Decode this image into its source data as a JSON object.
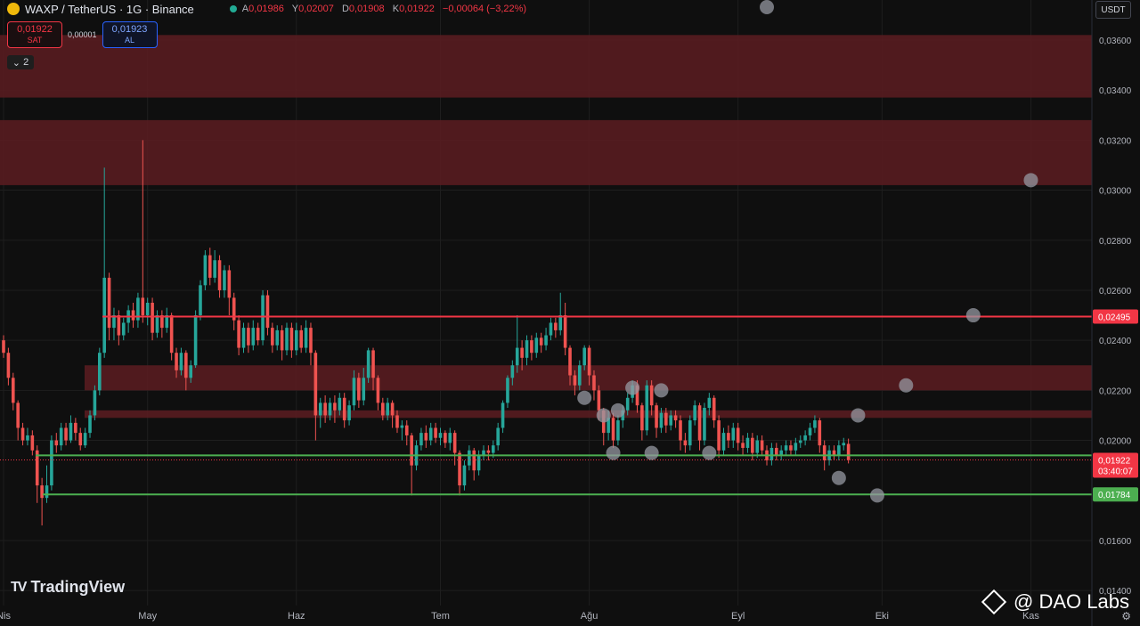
{
  "header": {
    "symbol": "WAXP / TetherUS · 1G · Binance",
    "ohlc": [
      {
        "label": "A",
        "value": "0,01986"
      },
      {
        "label": "Y",
        "value": "0,02007"
      },
      {
        "label": "D",
        "value": "0,01908"
      },
      {
        "label": "K",
        "value": "0,01922"
      },
      {
        "label": "",
        "value": "−0,00064 (−3,22%)"
      }
    ]
  },
  "trade": {
    "sell_price": "0,01922",
    "sell_label": "SAT",
    "spread": "0,00001",
    "buy_price": "0,01923",
    "buy_label": "AL"
  },
  "indicators_count": "2",
  "currency": "USDT",
  "watermark": "TradingView",
  "credit": "@ DAO Labs",
  "colors": {
    "up": "#26a69a",
    "down": "#ef5350",
    "zone": "#5c1c21",
    "resistance": "#f23645",
    "support": "#4caf50",
    "bg": "#0f0f0f"
  },
  "chart_data": {
    "type": "candlestick",
    "y_axis": {
      "range": [
        0.0134,
        0.0376
      ],
      "ticks": [
        "0,01400",
        "0,01600",
        "0,02000",
        "0,02200",
        "0,02400",
        "0,02600",
        "0,02800",
        "0,03000",
        "0,03200",
        "0,03400",
        "0,03600"
      ]
    },
    "x_axis": {
      "ticks": [
        "Nis",
        "May",
        "Haz",
        "Tem",
        "Ağu",
        "Eyl",
        "Eki",
        "Kas"
      ]
    },
    "price_labels": [
      {
        "value": 0.02495,
        "text": "0,02495",
        "kind": "resistance"
      },
      {
        "value": 0.01922,
        "text": "0,01922",
        "sub": "03:40:07",
        "kind": "last"
      },
      {
        "value": 0.01784,
        "text": "0,01784",
        "kind": "support"
      }
    ],
    "zones": [
      {
        "from": 0.0337,
        "to": 0.0362
      },
      {
        "from": 0.0302,
        "to": 0.0328
      },
      {
        "from": 0.022,
        "to": 0.023
      },
      {
        "from": 0.0209,
        "to": 0.0212
      }
    ],
    "lines": [
      {
        "value": 0.02495,
        "kind": "resistance"
      },
      {
        "value": 0.0194,
        "kind": "support"
      },
      {
        "value": 0.01784,
        "kind": "support"
      }
    ],
    "projection_points": [
      {
        "date": "2024-07-31",
        "price": 0.0217
      },
      {
        "date": "2024-08-04",
        "price": 0.021
      },
      {
        "date": "2024-08-06",
        "price": 0.0195
      },
      {
        "date": "2024-08-07",
        "price": 0.0212
      },
      {
        "date": "2024-08-10",
        "price": 0.0221
      },
      {
        "date": "2024-08-14",
        "price": 0.0195
      },
      {
        "date": "2024-08-16",
        "price": 0.022
      },
      {
        "date": "2024-08-26",
        "price": 0.0195
      },
      {
        "date": "2024-09-22",
        "price": 0.0185
      },
      {
        "date": "2024-09-26",
        "price": 0.021
      },
      {
        "date": "2024-09-30",
        "price": 0.0178
      },
      {
        "date": "2024-10-06",
        "price": 0.0222
      },
      {
        "date": "2024-10-20",
        "price": 0.025
      },
      {
        "date": "2024-09-07",
        "price": 0.0376
      },
      {
        "date": "2024-11-01",
        "price": 0.0304
      }
    ],
    "candles": [
      [
        0.024,
        0.0235,
        0.0233,
        0.0242
      ],
      [
        0.0235,
        0.0225,
        0.0222,
        0.0237
      ],
      [
        0.0225,
        0.0215,
        0.0212,
        0.0227
      ],
      [
        0.0215,
        0.0205,
        0.02,
        0.0216
      ],
      [
        0.0205,
        0.02,
        0.0198,
        0.0207
      ],
      [
        0.02,
        0.0202,
        0.0198,
        0.0205
      ],
      [
        0.0202,
        0.0196,
        0.0194,
        0.0204
      ],
      [
        0.0196,
        0.0182,
        0.0175,
        0.0198
      ],
      [
        0.0182,
        0.0177,
        0.0166,
        0.0185
      ],
      [
        0.0177,
        0.0182,
        0.0175,
        0.019
      ],
      [
        0.0182,
        0.02,
        0.018,
        0.0202
      ],
      [
        0.02,
        0.0198,
        0.0195,
        0.0203
      ],
      [
        0.0198,
        0.0205,
        0.0196,
        0.0207
      ],
      [
        0.0205,
        0.02,
        0.0198,
        0.0207
      ],
      [
        0.02,
        0.0207,
        0.0199,
        0.021
      ],
      [
        0.0207,
        0.0203,
        0.02,
        0.0209
      ],
      [
        0.0203,
        0.0198,
        0.0196,
        0.0205
      ],
      [
        0.0198,
        0.0203,
        0.0197,
        0.0205
      ],
      [
        0.0203,
        0.021,
        0.0201,
        0.0212
      ],
      [
        0.021,
        0.022,
        0.0208,
        0.0222
      ],
      [
        0.022,
        0.0235,
        0.0218,
        0.0237
      ],
      [
        0.0235,
        0.0265,
        0.0233,
        0.0309
      ],
      [
        0.0265,
        0.0245,
        0.024,
        0.0267
      ],
      [
        0.0245,
        0.025,
        0.024,
        0.0253
      ],
      [
        0.025,
        0.0242,
        0.0238,
        0.0252
      ],
      [
        0.0242,
        0.0247,
        0.024,
        0.0249
      ],
      [
        0.0247,
        0.0252,
        0.0243,
        0.0254
      ],
      [
        0.0252,
        0.0248,
        0.0245,
        0.0255
      ],
      [
        0.0248,
        0.0257,
        0.0245,
        0.0259
      ],
      [
        0.0257,
        0.025,
        0.0247,
        0.032
      ],
      [
        0.025,
        0.0255,
        0.0246,
        0.0257
      ],
      [
        0.0255,
        0.0243,
        0.024,
        0.0257
      ],
      [
        0.0243,
        0.025,
        0.0241,
        0.0252
      ],
      [
        0.025,
        0.0245,
        0.0241,
        0.0252
      ],
      [
        0.0245,
        0.025,
        0.0243,
        0.0253
      ],
      [
        0.025,
        0.0235,
        0.0232,
        0.0251
      ],
      [
        0.0235,
        0.0228,
        0.0225,
        0.0237
      ],
      [
        0.0228,
        0.0235,
        0.0226,
        0.0237
      ],
      [
        0.0235,
        0.0225,
        0.022,
        0.0236
      ],
      [
        0.0225,
        0.023,
        0.0223,
        0.0232
      ],
      [
        0.023,
        0.025,
        0.0229,
        0.0252
      ],
      [
        0.025,
        0.0262,
        0.0248,
        0.0264
      ],
      [
        0.0262,
        0.0274,
        0.026,
        0.0276
      ],
      [
        0.0274,
        0.0265,
        0.0262,
        0.0277
      ],
      [
        0.0265,
        0.0272,
        0.0263,
        0.0276
      ],
      [
        0.0272,
        0.026,
        0.0257,
        0.0274
      ],
      [
        0.026,
        0.0268,
        0.0257,
        0.027
      ],
      [
        0.0268,
        0.0257,
        0.025,
        0.027
      ],
      [
        0.0257,
        0.0248,
        0.0244,
        0.0259
      ],
      [
        0.0248,
        0.0237,
        0.0234,
        0.025
      ],
      [
        0.0237,
        0.0245,
        0.0235,
        0.0247
      ],
      [
        0.0245,
        0.0238,
        0.0235,
        0.0247
      ],
      [
        0.0238,
        0.0245,
        0.0236,
        0.0248
      ],
      [
        0.0245,
        0.024,
        0.0238,
        0.0247
      ],
      [
        0.024,
        0.0258,
        0.0238,
        0.026
      ],
      [
        0.0258,
        0.0245,
        0.0242,
        0.026
      ],
      [
        0.0245,
        0.0238,
        0.0235,
        0.0247
      ],
      [
        0.0238,
        0.0244,
        0.0236,
        0.0246
      ],
      [
        0.0244,
        0.0236,
        0.0232,
        0.0246
      ],
      [
        0.0236,
        0.0245,
        0.0234,
        0.0247
      ],
      [
        0.0245,
        0.0236,
        0.0233,
        0.0247
      ],
      [
        0.0236,
        0.0244,
        0.0234,
        0.0247
      ],
      [
        0.0244,
        0.0237,
        0.0235,
        0.0246
      ],
      [
        0.0237,
        0.0245,
        0.0235,
        0.0248
      ],
      [
        0.0245,
        0.0235,
        0.023,
        0.0247
      ],
      [
        0.0235,
        0.021,
        0.02,
        0.0236
      ],
      [
        0.021,
        0.0215,
        0.0205,
        0.0217
      ],
      [
        0.0215,
        0.021,
        0.0207,
        0.0218
      ],
      [
        0.021,
        0.0215,
        0.0208,
        0.0217
      ],
      [
        0.0215,
        0.0212,
        0.0207,
        0.0218
      ],
      [
        0.0212,
        0.0217,
        0.021,
        0.0219
      ],
      [
        0.0217,
        0.0208,
        0.0205,
        0.0219
      ],
      [
        0.0208,
        0.0214,
        0.0206,
        0.0216
      ],
      [
        0.0214,
        0.0225,
        0.0212,
        0.0228
      ],
      [
        0.0225,
        0.0216,
        0.0213,
        0.0227
      ],
      [
        0.0216,
        0.0225,
        0.0214,
        0.0229
      ],
      [
        0.0225,
        0.0236,
        0.0223,
        0.0237
      ],
      [
        0.0236,
        0.0225,
        0.022,
        0.0237
      ],
      [
        0.0225,
        0.0215,
        0.0212,
        0.0226
      ],
      [
        0.0215,
        0.021,
        0.0208,
        0.0217
      ],
      [
        0.021,
        0.0215,
        0.0208,
        0.0217
      ],
      [
        0.0215,
        0.021,
        0.0205,
        0.0216
      ],
      [
        0.021,
        0.0205,
        0.0203,
        0.0212
      ],
      [
        0.0205,
        0.0206,
        0.02,
        0.0208
      ],
      [
        0.0206,
        0.0202,
        0.0198,
        0.0208
      ],
      [
        0.0202,
        0.019,
        0.0178,
        0.0203
      ],
      [
        0.019,
        0.0198,
        0.0188,
        0.02
      ],
      [
        0.0198,
        0.0203,
        0.0196,
        0.0205
      ],
      [
        0.0203,
        0.02,
        0.0197,
        0.0206
      ],
      [
        0.02,
        0.0205,
        0.0198,
        0.0207
      ],
      [
        0.0205,
        0.0201,
        0.0199,
        0.0207
      ],
      [
        0.0201,
        0.0203,
        0.0198,
        0.0205
      ],
      [
        0.0203,
        0.0199,
        0.0197,
        0.0204
      ],
      [
        0.0199,
        0.0203,
        0.0196,
        0.0205
      ],
      [
        0.0203,
        0.0195,
        0.019,
        0.0204
      ],
      [
        0.0195,
        0.0182,
        0.0178,
        0.0196
      ],
      [
        0.0182,
        0.019,
        0.018,
        0.0192
      ],
      [
        0.019,
        0.0196,
        0.0188,
        0.0198
      ],
      [
        0.0196,
        0.0188,
        0.0184,
        0.0197
      ],
      [
        0.0188,
        0.0194,
        0.0186,
        0.0196
      ],
      [
        0.0194,
        0.0196,
        0.0192,
        0.0198
      ],
      [
        0.0196,
        0.0195,
        0.0192,
        0.0198
      ],
      [
        0.0195,
        0.0198,
        0.0193,
        0.02
      ],
      [
        0.0198,
        0.0205,
        0.0196,
        0.0207
      ],
      [
        0.0205,
        0.0215,
        0.0203,
        0.0216
      ],
      [
        0.0215,
        0.0225,
        0.0213,
        0.0226
      ],
      [
        0.0225,
        0.023,
        0.0222,
        0.0232
      ],
      [
        0.023,
        0.0237,
        0.0227,
        0.025
      ],
      [
        0.0237,
        0.0233,
        0.0228,
        0.024
      ],
      [
        0.0233,
        0.024,
        0.023,
        0.0242
      ],
      [
        0.024,
        0.0235,
        0.0232,
        0.0242
      ],
      [
        0.0235,
        0.0241,
        0.0233,
        0.0243
      ],
      [
        0.0241,
        0.0238,
        0.0235,
        0.0243
      ],
      [
        0.0238,
        0.0242,
        0.0236,
        0.0245
      ],
      [
        0.0242,
        0.0247,
        0.024,
        0.0249
      ],
      [
        0.0247,
        0.0244,
        0.0241,
        0.0249
      ],
      [
        0.0244,
        0.025,
        0.0242,
        0.0259
      ],
      [
        0.025,
        0.0237,
        0.0234,
        0.0255
      ],
      [
        0.0237,
        0.0226,
        0.0222,
        0.0238
      ],
      [
        0.0226,
        0.0222,
        0.0218,
        0.0228
      ],
      [
        0.0222,
        0.023,
        0.022,
        0.0232
      ],
      [
        0.023,
        0.0237,
        0.0228,
        0.0238
      ],
      [
        0.0237,
        0.0226,
        0.0222,
        0.0238
      ],
      [
        0.0226,
        0.022,
        0.0216,
        0.0228
      ],
      [
        0.022,
        0.0212,
        0.0208,
        0.0222
      ],
      [
        0.0212,
        0.0203,
        0.0198,
        0.0213
      ],
      [
        0.0203,
        0.0209,
        0.02,
        0.0212
      ],
      [
        0.0209,
        0.02,
        0.0197,
        0.0211
      ],
      [
        0.02,
        0.0208,
        0.0198,
        0.021
      ],
      [
        0.0208,
        0.0212,
        0.0205,
        0.0214
      ],
      [
        0.0212,
        0.0217,
        0.021,
        0.0219
      ],
      [
        0.0217,
        0.0222,
        0.0215,
        0.0224
      ],
      [
        0.0222,
        0.0214,
        0.0211,
        0.0224
      ],
      [
        0.0214,
        0.0204,
        0.02,
        0.0215
      ],
      [
        0.0204,
        0.0222,
        0.0202,
        0.0224
      ],
      [
        0.0222,
        0.0214,
        0.021,
        0.0224
      ],
      [
        0.0214,
        0.0205,
        0.0201,
        0.0215
      ],
      [
        0.0205,
        0.0211,
        0.0203,
        0.0213
      ],
      [
        0.0211,
        0.0206,
        0.0203,
        0.0213
      ],
      [
        0.0206,
        0.021,
        0.0204,
        0.0212
      ],
      [
        0.021,
        0.0208,
        0.0205,
        0.0212
      ],
      [
        0.0208,
        0.02,
        0.0196,
        0.021
      ],
      [
        0.02,
        0.0198,
        0.0195,
        0.0203
      ],
      [
        0.0198,
        0.0208,
        0.0196,
        0.021
      ],
      [
        0.0208,
        0.0214,
        0.0206,
        0.0216
      ],
      [
        0.0214,
        0.02,
        0.0196,
        0.0215
      ],
      [
        0.02,
        0.0213,
        0.0198,
        0.0215
      ],
      [
        0.0213,
        0.0217,
        0.021,
        0.0219
      ],
      [
        0.0217,
        0.0208,
        0.0205,
        0.0218
      ],
      [
        0.0208,
        0.0196,
        0.0193,
        0.021
      ],
      [
        0.0196,
        0.0203,
        0.0194,
        0.0205
      ],
      [
        0.0203,
        0.02,
        0.0197,
        0.0206
      ],
      [
        0.02,
        0.0205,
        0.0197,
        0.0207
      ],
      [
        0.0205,
        0.0199,
        0.0196,
        0.0207
      ],
      [
        0.0199,
        0.0197,
        0.0194,
        0.0202
      ],
      [
        0.0197,
        0.0201,
        0.0195,
        0.0203
      ],
      [
        0.0201,
        0.0195,
        0.0192,
        0.0203
      ],
      [
        0.0195,
        0.02,
        0.0193,
        0.0202
      ],
      [
        0.02,
        0.0196,
        0.0194,
        0.0202
      ],
      [
        0.0196,
        0.0192,
        0.019,
        0.0198
      ],
      [
        0.0192,
        0.0197,
        0.019,
        0.0199
      ],
      [
        0.0197,
        0.0194,
        0.0192,
        0.0199
      ],
      [
        0.0194,
        0.0196,
        0.0192,
        0.0198
      ],
      [
        0.0196,
        0.0198,
        0.0194,
        0.02
      ],
      [
        0.0198,
        0.0196,
        0.0194,
        0.02
      ],
      [
        0.0196,
        0.0199,
        0.0194,
        0.0201
      ],
      [
        0.0199,
        0.02,
        0.0197,
        0.0202
      ],
      [
        0.02,
        0.0202,
        0.0198,
        0.0204
      ],
      [
        0.0202,
        0.0205,
        0.02,
        0.0207
      ],
      [
        0.0205,
        0.0208,
        0.0203,
        0.021
      ],
      [
        0.0208,
        0.0198,
        0.0195,
        0.0209
      ],
      [
        0.0198,
        0.0192,
        0.0188,
        0.02
      ],
      [
        0.0192,
        0.0196,
        0.019,
        0.0198
      ],
      [
        0.0196,
        0.0194,
        0.0192,
        0.0198
      ],
      [
        0.0194,
        0.0198,
        0.0192,
        0.02
      ],
      [
        0.0198,
        0.0199,
        0.0196,
        0.0201
      ],
      [
        0.01986,
        0.01922,
        0.01908,
        0.02007
      ]
    ]
  }
}
